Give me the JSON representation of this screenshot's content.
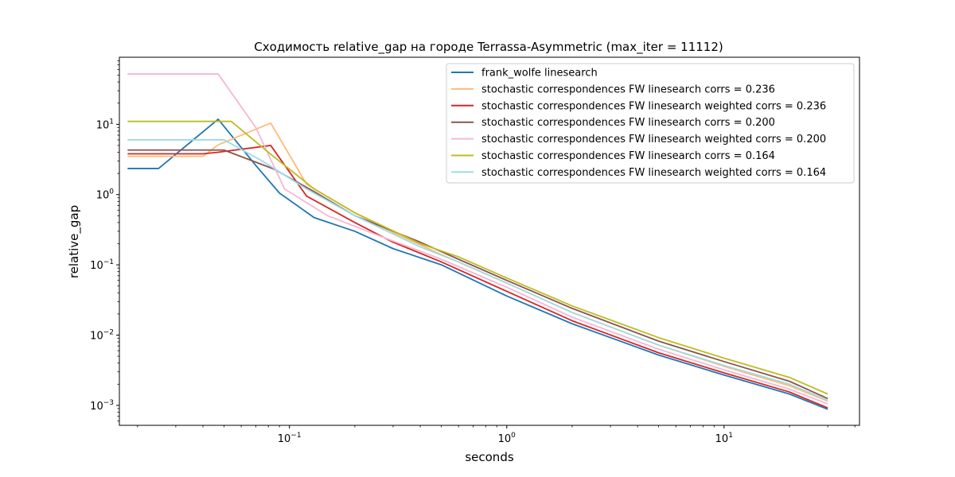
{
  "chart_data": {
    "type": "line",
    "title": "Сходимость relative_gap на городе Terrassa-Asymmetric  (max_iter = 11112)",
    "xlabel": "seconds",
    "ylabel": "relative_gap",
    "xscale": "log",
    "yscale": "log",
    "xlim": [
      0.0165,
      42
    ],
    "ylim": [
      0.00052,
      90
    ],
    "grid": false,
    "legend_position": "top-right",
    "x_ticks": [
      {
        "value": 0.1,
        "base": "10",
        "exp": "−1"
      },
      {
        "value": 1,
        "base": "10",
        "exp": "0"
      },
      {
        "value": 10,
        "base": "10",
        "exp": "1"
      }
    ],
    "y_ticks": [
      {
        "value": 0.001,
        "base": "10",
        "exp": "−3"
      },
      {
        "value": 0.01,
        "base": "10",
        "exp": "−2"
      },
      {
        "value": 0.1,
        "base": "10",
        "exp": "−1"
      },
      {
        "value": 1,
        "base": "10",
        "exp": "0"
      },
      {
        "value": 10,
        "base": "10",
        "exp": "1"
      }
    ],
    "series": [
      {
        "name": "frank_wolfe linesearch",
        "color": "#1f77b4",
        "points": [
          [
            0.018,
            2.35
          ],
          [
            0.025,
            2.35
          ],
          [
            0.047,
            11.8
          ],
          [
            0.07,
            2.6
          ],
          [
            0.09,
            1.05
          ],
          [
            0.13,
            0.47
          ],
          [
            0.2,
            0.3
          ],
          [
            0.3,
            0.17
          ],
          [
            0.5,
            0.1
          ],
          [
            1,
            0.036
          ],
          [
            2,
            0.0145
          ],
          [
            5,
            0.0052
          ],
          [
            10,
            0.0027
          ],
          [
            20,
            0.00145
          ],
          [
            30,
            0.00088
          ]
        ]
      },
      {
        "name": "stochastic correspondences FW linesearch corrs = 0.236",
        "color": "#ffbb78",
        "points": [
          [
            0.018,
            3.5
          ],
          [
            0.04,
            3.5
          ],
          [
            0.047,
            5.1
          ],
          [
            0.082,
            10.4
          ],
          [
            0.12,
            1.4
          ],
          [
            0.2,
            0.55
          ],
          [
            0.3,
            0.29
          ],
          [
            0.5,
            0.14
          ],
          [
            1,
            0.055
          ],
          [
            2,
            0.021
          ],
          [
            5,
            0.0072
          ],
          [
            10,
            0.0036
          ],
          [
            20,
            0.0019
          ],
          [
            30,
            0.00115
          ]
        ]
      },
      {
        "name": "stochastic correspondences FW linesearch weighted corrs = 0.236",
        "color": "#d62728",
        "points": [
          [
            0.018,
            3.8
          ],
          [
            0.04,
            3.8
          ],
          [
            0.047,
            4.0
          ],
          [
            0.082,
            5.0
          ],
          [
            0.12,
            0.95
          ],
          [
            0.2,
            0.4
          ],
          [
            0.3,
            0.21
          ],
          [
            0.5,
            0.11
          ],
          [
            1,
            0.042
          ],
          [
            2,
            0.016
          ],
          [
            5,
            0.0056
          ],
          [
            10,
            0.0029
          ],
          [
            20,
            0.00155
          ],
          [
            30,
            0.00092
          ]
        ]
      },
      {
        "name": "stochastic correspondences FW linesearch corrs = 0.200",
        "color": "#8c564b",
        "points": [
          [
            0.018,
            4.3
          ],
          [
            0.05,
            4.3
          ],
          [
            0.085,
            2.3
          ],
          [
            0.13,
            1.1
          ],
          [
            0.2,
            0.5
          ],
          [
            0.4,
            0.21
          ],
          [
            0.6,
            0.12
          ],
          [
            1,
            0.06
          ],
          [
            2,
            0.024
          ],
          [
            5,
            0.0082
          ],
          [
            10,
            0.0042
          ],
          [
            20,
            0.0022
          ],
          [
            30,
            0.00125
          ]
        ]
      },
      {
        "name": "stochastic correspondences FW linesearch weighted corrs = 0.200",
        "color": "#f7b6d2",
        "points": [
          [
            0.018,
            52
          ],
          [
            0.047,
            52
          ],
          [
            0.07,
            9.0
          ],
          [
            0.095,
            1.2
          ],
          [
            0.15,
            0.5
          ],
          [
            0.25,
            0.27
          ],
          [
            0.5,
            0.12
          ],
          [
            1,
            0.048
          ],
          [
            2,
            0.018
          ],
          [
            5,
            0.0063
          ],
          [
            10,
            0.0032
          ],
          [
            20,
            0.0017
          ],
          [
            30,
            0.00105
          ]
        ]
      },
      {
        "name": "stochastic correspondences FW linesearch corrs = 0.164",
        "color": "#bcbd22",
        "points": [
          [
            0.018,
            11
          ],
          [
            0.054,
            11
          ],
          [
            0.08,
            4.0
          ],
          [
            0.13,
            1.2
          ],
          [
            0.2,
            0.55
          ],
          [
            0.4,
            0.2
          ],
          [
            0.6,
            0.13
          ],
          [
            1,
            0.065
          ],
          [
            2,
            0.026
          ],
          [
            5,
            0.0092
          ],
          [
            10,
            0.0047
          ],
          [
            20,
            0.0025
          ],
          [
            30,
            0.00145
          ]
        ]
      },
      {
        "name": "stochastic correspondences FW linesearch weighted corrs = 0.164",
        "color": "#9edae5",
        "points": [
          [
            0.018,
            6.0
          ],
          [
            0.05,
            6.0
          ],
          [
            0.075,
            3.0
          ],
          [
            0.12,
            1.2
          ],
          [
            0.2,
            0.5
          ],
          [
            0.4,
            0.18
          ],
          [
            0.6,
            0.11
          ],
          [
            1,
            0.055
          ],
          [
            2,
            0.021
          ],
          [
            5,
            0.0072
          ],
          [
            10,
            0.0037
          ],
          [
            20,
            0.002
          ],
          [
            30,
            0.00118
          ]
        ]
      }
    ]
  }
}
